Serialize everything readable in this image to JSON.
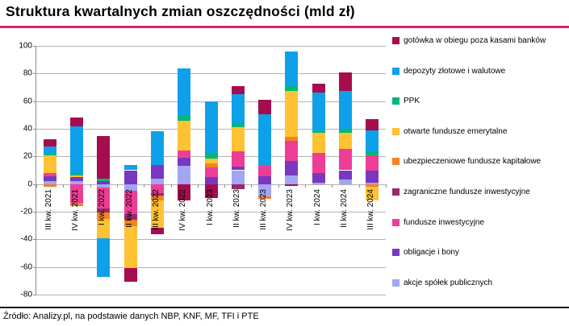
{
  "header": {
    "title": "Struktura kwartalnych zmian oszczędności (mld zł)",
    "underline_color": "#d3246d"
  },
  "footer": {
    "source": "Źródło: Analizy.pl, na podstawie danych NBP, KNF, MF, TFI i PTE"
  },
  "chart_data": {
    "type": "bar",
    "variant": "stacked",
    "title": "Struktura kwartalnych zmian oszczędności (mld zł)",
    "unit": "mld zł",
    "ylim": [
      -80,
      100
    ],
    "yticks": [
      100,
      80,
      60,
      40,
      20,
      0,
      -20,
      -40,
      -60,
      -80
    ],
    "grid": true,
    "legend_position": "right",
    "legend_order": "reverse_of_series",
    "categories": [
      "III kw. 2021",
      "IV kw. 2021",
      "I kw. 2022",
      "II kw. 2022",
      "III kw. 2022",
      "IV kw. 2022",
      "I kw. 2023",
      "II kw. 2023",
      "III kw. 2023",
      "IV kw. 2023",
      "I kw. 2024",
      "II kw. 2024",
      "III kw. 2024"
    ],
    "series": [
      {
        "name": "akcje spółek publicznych",
        "color": "#a3a6f2",
        "values": [
          2.3,
          2.2,
          -2.5,
          -5.0,
          3.9,
          13.0,
          0,
          10.0,
          -9.1,
          6.1,
          1.2,
          3.2,
          1.0
        ]
      },
      {
        "name": "obligacje i bony",
        "color": "#7838c0",
        "values": [
          3.5,
          3.0,
          2.0,
          10.0,
          9.9,
          6.0,
          5.0,
          2.9,
          5.8,
          10.7,
          6.8,
          6.8,
          8.5
        ]
      },
      {
        "name": "fundusze inwestycyjne",
        "color": "#ee3d96",
        "values": [
          2.3,
          -13.5,
          -15.0,
          -17.0,
          -6.5,
          5.0,
          6.9,
          10.7,
          7.8,
          14.6,
          14.6,
          15.5,
          11.1
        ]
      },
      {
        "name": "zagraniczne fundusze inwestycyjne",
        "color": "#972b66",
        "values": [
          0,
          0,
          -3.0,
          -4.0,
          -2.0,
          0,
          0,
          -3.8,
          0,
          0,
          0,
          0,
          0
        ]
      },
      {
        "name": "ubezpieczeniowe fundusze kapitałowe",
        "color": "#f58220",
        "values": [
          -2.0,
          -2.5,
          -4.5,
          -4.5,
          -3.1,
          0,
          2.9,
          0,
          -1.4,
          2.9,
          0,
          0,
          -2.0
        ]
      },
      {
        "name": "otwarte fundusze emerytalne",
        "color": "#ffc233",
        "values": [
          12.5,
          1.2,
          -14.5,
          -30.0,
          -19.8,
          22.0,
          3.9,
          17.5,
          0,
          33.0,
          14.2,
          11.7,
          -10.0
        ]
      },
      {
        "name": "PPK",
        "color": "#00b876",
        "values": [
          1.5,
          1.6,
          1.7,
          0,
          0,
          3.5,
          3.9,
          2.9,
          0,
          3.5,
          2.3,
          2.9,
          2.5
        ]
      },
      {
        "name": "depozyty złotowe i walutowe",
        "color": "#0fa0ea",
        "values": [
          5.2,
          33.5,
          -27.7,
          3.5,
          24.3,
          34.3,
          37.4,
          21.3,
          36.9,
          25.3,
          27.2,
          27.2,
          15.6
        ]
      },
      {
        "name": "gotówka w obiegu poza kasami banków",
        "color": "#a60d4f",
        "values": [
          5.4,
          6.5,
          31.0,
          -10.0,
          -4.9,
          -12.0,
          -10.0,
          5.8,
          10.7,
          -1.2,
          6.2,
          13.6,
          8.3
        ]
      }
    ]
  }
}
